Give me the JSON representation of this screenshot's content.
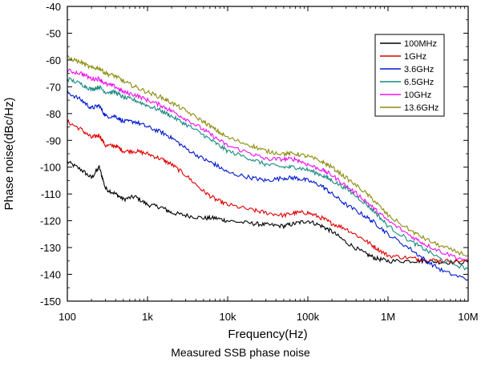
{
  "chart_data": {
    "type": "line",
    "xlabel": "Frequency(Hz)",
    "ylabel": "Phase noise(dBc/Hz)",
    "xscale": "log",
    "xlim": [
      100,
      10000000
    ],
    "ylim": [
      -150,
      -40
    ],
    "xticks": [
      {
        "value": 100,
        "label": "100"
      },
      {
        "value": 1000,
        "label": "1k"
      },
      {
        "value": 10000,
        "label": "10k"
      },
      {
        "value": 100000,
        "label": "100k"
      },
      {
        "value": 1000000,
        "label": "1M"
      },
      {
        "value": 10000000,
        "label": "10M"
      }
    ],
    "yticks": [
      -150,
      -140,
      -130,
      -120,
      -110,
      -100,
      -90,
      -80,
      -70,
      -60,
      -50,
      -40
    ],
    "grid": false,
    "legend_position": "top-right",
    "series": [
      {
        "name": "100MHz",
        "color": "#000000",
        "x": [
          100,
          150,
          200,
          250,
          300,
          400,
          500,
          700,
          1000,
          1500,
          2000,
          3000,
          5000,
          7000,
          10000,
          20000,
          30000,
          50000,
          70000,
          100000,
          150000,
          200000,
          300000,
          500000,
          700000,
          1000000,
          2000000,
          3000000,
          5000000,
          10000000
        ],
        "y": [
          -98,
          -101,
          -104,
          -100,
          -108,
          -110,
          -112,
          -111,
          -114,
          -115,
          -117,
          -118,
          -119,
          -119,
          -120,
          -121,
          -121.5,
          -122,
          -121,
          -120,
          -122,
          -124,
          -128,
          -132,
          -134,
          -135,
          -135,
          -135,
          -135.5,
          -135.5
        ]
      },
      {
        "name": "1GHz",
        "color": "#e00000",
        "x": [
          100,
          150,
          200,
          250,
          300,
          400,
          500,
          700,
          1000,
          1500,
          2000,
          3000,
          5000,
          7000,
          10000,
          20000,
          30000,
          50000,
          70000,
          100000,
          150000,
          200000,
          300000,
          500000,
          700000,
          1000000,
          2000000,
          3000000,
          5000000,
          10000000
        ],
        "y": [
          -83,
          -86,
          -89,
          -88,
          -92,
          -92,
          -94,
          -94,
          -95,
          -97,
          -99,
          -103,
          -109,
          -112,
          -114,
          -116,
          -117,
          -118,
          -117,
          -117,
          -119,
          -121,
          -123,
          -127,
          -130,
          -133,
          -134,
          -134.5,
          -135,
          -135
        ]
      },
      {
        "name": "3.6GHz",
        "color": "#0018d0",
        "x": [
          100,
          150,
          200,
          250,
          300,
          400,
          500,
          700,
          1000,
          1500,
          2000,
          3000,
          5000,
          7000,
          10000,
          20000,
          30000,
          50000,
          70000,
          100000,
          150000,
          200000,
          300000,
          500000,
          700000,
          1000000,
          2000000,
          3000000,
          5000000,
          10000000
        ],
        "y": [
          -72,
          -75,
          -78,
          -77,
          -81,
          -81,
          -83,
          -83,
          -85,
          -87,
          -89,
          -93,
          -97,
          -99,
          -102,
          -104,
          -105,
          -104,
          -104,
          -105,
          -107,
          -110,
          -114,
          -118,
          -121,
          -125,
          -131,
          -135,
          -139,
          -142
        ]
      },
      {
        "name": "6.5GHz",
        "color": "#178a7e",
        "x": [
          100,
          150,
          200,
          250,
          300,
          400,
          500,
          700,
          1000,
          1500,
          2000,
          3000,
          5000,
          7000,
          10000,
          20000,
          30000,
          50000,
          70000,
          100000,
          150000,
          200000,
          300000,
          500000,
          700000,
          1000000,
          2000000,
          3000000,
          5000000,
          10000000
        ],
        "y": [
          -67,
          -69,
          -71,
          -70,
          -72,
          -72,
          -74,
          -75,
          -77,
          -79,
          -81,
          -84,
          -88,
          -91,
          -94,
          -97,
          -99,
          -100,
          -100,
          -101,
          -103,
          -105,
          -108,
          -113,
          -117,
          -122,
          -128,
          -131,
          -135,
          -138
        ]
      },
      {
        "name": "10GHz",
        "color": "#ee10ee",
        "x": [
          100,
          150,
          200,
          250,
          300,
          400,
          500,
          700,
          1000,
          1500,
          2000,
          3000,
          5000,
          7000,
          10000,
          20000,
          30000,
          50000,
          70000,
          100000,
          150000,
          200000,
          300000,
          500000,
          700000,
          1000000,
          2000000,
          3000000,
          5000000,
          10000000
        ],
        "y": [
          -64,
          -65,
          -67,
          -67,
          -69,
          -70,
          -72,
          -73,
          -75,
          -77,
          -79,
          -82,
          -86,
          -89,
          -92,
          -95,
          -97,
          -97,
          -97,
          -99,
          -101,
          -103,
          -107,
          -112,
          -116,
          -120,
          -126,
          -129,
          -132,
          -135
        ]
      },
      {
        "name": "13.6GHz",
        "color": "#8c8c10",
        "x": [
          100,
          150,
          200,
          250,
          300,
          400,
          500,
          700,
          1000,
          1500,
          2000,
          3000,
          5000,
          7000,
          10000,
          20000,
          30000,
          50000,
          70000,
          100000,
          150000,
          200000,
          300000,
          500000,
          700000,
          1000000,
          2000000,
          3000000,
          5000000,
          10000000
        ],
        "y": [
          -59,
          -61,
          -63,
          -63,
          -65,
          -66,
          -68,
          -70,
          -72,
          -74,
          -76,
          -79,
          -83,
          -86,
          -89,
          -92,
          -94,
          -95,
          -95,
          -96,
          -98,
          -100,
          -104,
          -109,
          -113,
          -118,
          -124,
          -127,
          -130,
          -133
        ]
      }
    ]
  },
  "caption": "Measured SSB phase noise"
}
